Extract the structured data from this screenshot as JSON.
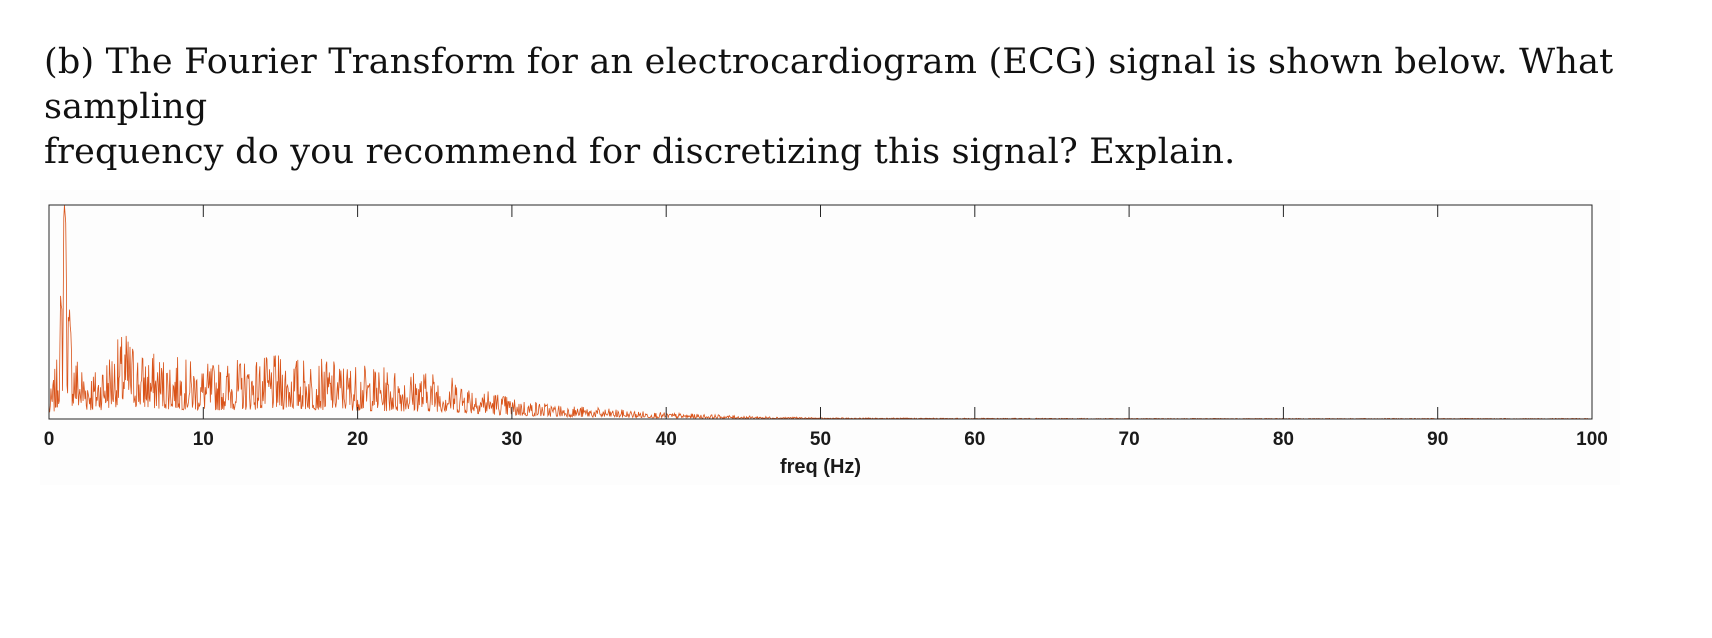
{
  "question": {
    "line1": "(b) The Fourier Transform for an electrocardiogram (ECG) signal is shown below.  What sampling",
    "line2": "frequency do you recommend for discretizing this signal?  Explain."
  },
  "colors": {
    "line": "#d95319",
    "axis": "#262626",
    "text": "#1a1a1a"
  },
  "chart_data": {
    "type": "line",
    "title": "",
    "xlabel": "freq (Hz)",
    "ylabel": "",
    "xlim": [
      0,
      100
    ],
    "ylim": [
      0,
      1
    ],
    "xticks": [
      0,
      10,
      20,
      30,
      40,
      50,
      60,
      70,
      80,
      90,
      100
    ],
    "xtick_labels": [
      "0",
      "10",
      "20",
      "30",
      "40",
      "50",
      "60",
      "70",
      "80",
      "90",
      "100"
    ],
    "yticks_shown": false,
    "grid": false,
    "legend": "none",
    "series": [
      {
        "name": "",
        "color": "#d95319",
        "envelope": {
          "x": [
            0,
            0.5,
            1.0,
            1.2,
            1.5,
            2,
            3,
            4,
            5,
            6,
            8,
            10,
            12,
            15,
            18,
            20,
            22,
            25,
            28,
            30,
            33,
            36,
            40,
            45,
            50,
            60,
            70,
            80,
            90,
            100
          ],
          "y": [
            0.1,
            0.28,
            1.0,
            0.8,
            0.4,
            0.28,
            0.24,
            0.34,
            0.42,
            0.32,
            0.3,
            0.26,
            0.28,
            0.3,
            0.28,
            0.26,
            0.24,
            0.23,
            0.16,
            0.1,
            0.07,
            0.05,
            0.03,
            0.015,
            0.006,
            0.004,
            0.003,
            0.003,
            0.003,
            0.003
          ]
        }
      }
    ]
  }
}
